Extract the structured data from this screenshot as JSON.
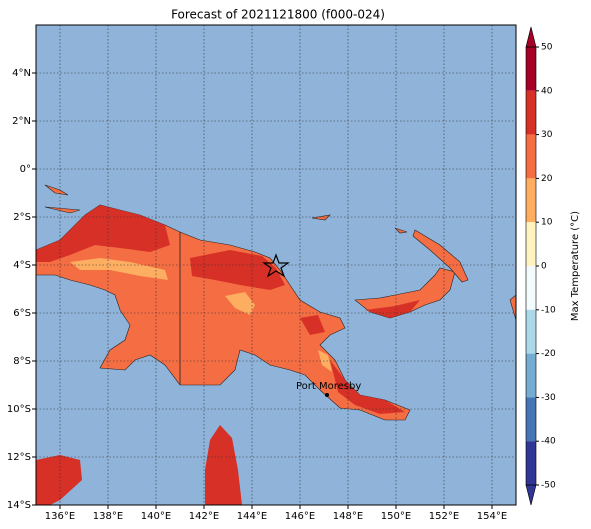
{
  "title": "Forecast of 2021121800 (f000-024)",
  "map": {
    "xlim": [
      135,
      155
    ],
    "ylim": [
      -14,
      6
    ],
    "grid": true,
    "xticks": [
      {
        "value": 136,
        "label": "136°E"
      },
      {
        "value": 138,
        "label": "138°E"
      },
      {
        "value": 140,
        "label": "140°E"
      },
      {
        "value": 142,
        "label": "142°E"
      },
      {
        "value": 144,
        "label": "144°E"
      },
      {
        "value": 146,
        "label": "146°E"
      },
      {
        "value": 148,
        "label": "148°E"
      },
      {
        "value": 150,
        "label": "150°E"
      },
      {
        "value": 152,
        "label": "152°E"
      },
      {
        "value": 154,
        "label": "154°E"
      }
    ],
    "yticks": [
      {
        "value": 4,
        "label": "4°N"
      },
      {
        "value": 2,
        "label": "2°N"
      },
      {
        "value": 0,
        "label": "0°"
      },
      {
        "value": -2,
        "label": "2°S"
      },
      {
        "value": -4,
        "label": "4°S"
      },
      {
        "value": -6,
        "label": "6°S"
      },
      {
        "value": -8,
        "label": "8°S"
      },
      {
        "value": -10,
        "label": "10°S"
      },
      {
        "value": -12,
        "label": "12°S"
      },
      {
        "value": -14,
        "label": "14°S"
      }
    ],
    "city": "Port Moresby"
  },
  "colorbar": {
    "label": "Max Temperature (°C)",
    "ticks": [
      50,
      40,
      30,
      20,
      10,
      0,
      -10,
      -20,
      -30,
      -40,
      -50
    ],
    "colors": [
      "#a50026",
      "#d73027",
      "#f46d43",
      "#fdae61",
      "#fff3c0",
      "#f4fbfd",
      "#abd9e9",
      "#74add1",
      "#4575b4",
      "#313695"
    ]
  }
}
